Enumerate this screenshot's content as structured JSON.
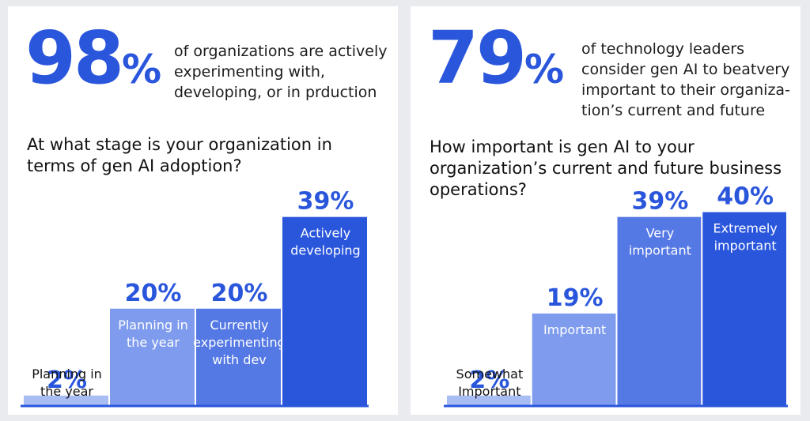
{
  "colors": {
    "accent": "#2a56dc",
    "bar_light": "#a9bdf5",
    "bar_dark": "#2a56dc",
    "baseline": "#2a56dc",
    "text": "#1d1d1f"
  },
  "left": {
    "stat_number": "98",
    "stat_percent": "%",
    "stat_text": "of organizations are actively experimenting with, developing, or in prduction",
    "question": "At what stage is your organization in terms of gen AI adoption?"
  },
  "right": {
    "stat_number": "79",
    "stat_percent": "%",
    "stat_text": "of technology leaders consider gen AI to beatvery important to their organiza-tion’s current and future",
    "question": "How important is gen AI to your organization’s current and future business operations?"
  },
  "chart_data": [
    {
      "type": "bar",
      "categories": [
        "Planning in the year",
        "Planning in the year",
        "Currently experimenting with dev",
        "Actively developing"
      ],
      "values": [
        2,
        20,
        20,
        39
      ],
      "value_labels": [
        "2%",
        "20%",
        "20%",
        "39%"
      ],
      "title": "At what stage is your organization in terms of gen AI adoption?",
      "ylim": [
        0,
        45
      ]
    },
    {
      "type": "bar",
      "categories": [
        "Somewhat Important",
        "Important",
        "Very important",
        "Extremely important"
      ],
      "values": [
        2,
        19,
        39,
        40
      ],
      "value_labels": [
        "2%",
        "19%",
        "39%",
        "40%"
      ],
      "title": "How important is gen AI to your organization’s current and future business operations?",
      "ylim": [
        0,
        45
      ]
    }
  ]
}
